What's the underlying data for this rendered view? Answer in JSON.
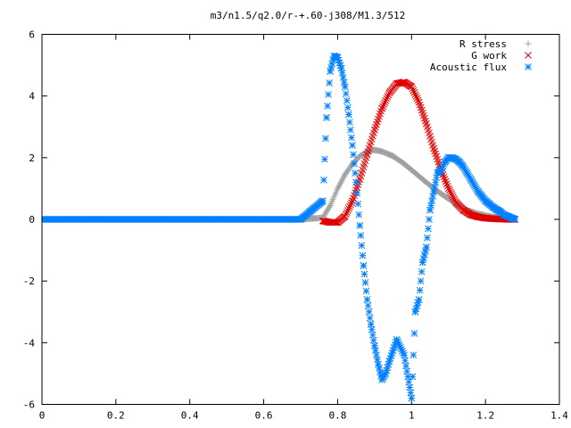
{
  "chart_data": {
    "type": "scatter",
    "title": "m3/n1.5/q2.0/r-+.60-j308/M1.3/512",
    "xlabel": "",
    "ylabel": "",
    "xlim": [
      0,
      1.4
    ],
    "ylim": [
      -6,
      6
    ],
    "x_ticks": [
      "0",
      "0.2",
      "0.4",
      "0.6",
      "0.8",
      "1",
      "1.2",
      "1.4"
    ],
    "y_ticks": [
      "-6",
      "-4",
      "-2",
      "0",
      "2",
      "4",
      "6"
    ],
    "legend_position": "top-right",
    "grid": false,
    "series": [
      {
        "name": "R stress",
        "marker": "plus",
        "color": "#a0a0a0",
        "x": [
          0.0,
          0.1,
          0.2,
          0.3,
          0.4,
          0.5,
          0.6,
          0.7,
          0.76,
          0.78,
          0.8,
          0.82,
          0.84,
          0.86,
          0.88,
          0.9,
          0.92,
          0.95,
          0.98,
          1.0,
          1.03,
          1.06,
          1.09,
          1.12,
          1.15,
          1.18,
          1.21,
          1.24,
          1.27
        ],
        "y": [
          0,
          0,
          0,
          0,
          0,
          0,
          0,
          0,
          0.05,
          0.45,
          1.0,
          1.45,
          1.8,
          2.05,
          2.2,
          2.25,
          2.2,
          2.05,
          1.8,
          1.6,
          1.3,
          1.0,
          0.75,
          0.5,
          0.3,
          0.18,
          0.1,
          0.05,
          0.02
        ]
      },
      {
        "name": "G work",
        "marker": "cross",
        "color": "#e00000",
        "x": [
          0.76,
          0.78,
          0.8,
          0.82,
          0.84,
          0.86,
          0.88,
          0.9,
          0.92,
          0.94,
          0.96,
          0.98,
          1.0,
          1.02,
          1.04,
          1.06,
          1.08,
          1.1,
          1.12,
          1.14,
          1.16,
          1.18,
          1.2,
          1.22,
          1.24,
          1.26,
          1.28
        ],
        "y": [
          -0.05,
          -0.1,
          -0.1,
          0.1,
          0.6,
          1.3,
          2.1,
          2.9,
          3.6,
          4.1,
          4.4,
          4.45,
          4.3,
          3.8,
          3.1,
          2.3,
          1.6,
          1.0,
          0.55,
          0.3,
          0.15,
          0.08,
          0.04,
          0.02,
          0.01,
          0.0,
          0.0
        ]
      },
      {
        "name": "Acoustic flux",
        "marker": "star",
        "color": "#0080ff",
        "x": [
          0.0,
          0.1,
          0.2,
          0.3,
          0.4,
          0.5,
          0.6,
          0.7,
          0.76,
          0.77,
          0.78,
          0.79,
          0.8,
          0.81,
          0.82,
          0.83,
          0.84,
          0.85,
          0.86,
          0.87,
          0.88,
          0.89,
          0.9,
          0.91,
          0.92,
          0.93,
          0.94,
          0.96,
          0.98,
          1.0,
          1.01,
          1.02,
          1.03,
          1.04,
          1.05,
          1.06,
          1.07,
          1.08,
          1.09,
          1.1,
          1.11,
          1.12,
          1.13,
          1.14,
          1.15,
          1.16,
          1.17,
          1.18,
          1.19,
          1.2,
          1.21,
          1.22,
          1.23,
          1.24,
          1.25,
          1.26,
          1.27,
          1.28
        ],
        "y": [
          0,
          0,
          0,
          0,
          0,
          0,
          0,
          0,
          0.6,
          3.3,
          4.8,
          5.3,
          5.25,
          4.9,
          4.3,
          3.4,
          2.4,
          1.2,
          -0.2,
          -1.5,
          -2.6,
          -3.4,
          -4.1,
          -4.7,
          -5.2,
          -5.0,
          -4.6,
          -3.9,
          -4.4,
          -5.8,
          -3.0,
          -2.6,
          -1.4,
          -0.9,
          0.3,
          0.9,
          1.5,
          1.6,
          1.85,
          2.0,
          2.0,
          1.95,
          1.85,
          1.7,
          1.5,
          1.3,
          1.1,
          0.9,
          0.75,
          0.6,
          0.5,
          0.4,
          0.32,
          0.25,
          0.15,
          0.1,
          0.05,
          0.0
        ]
      }
    ]
  }
}
